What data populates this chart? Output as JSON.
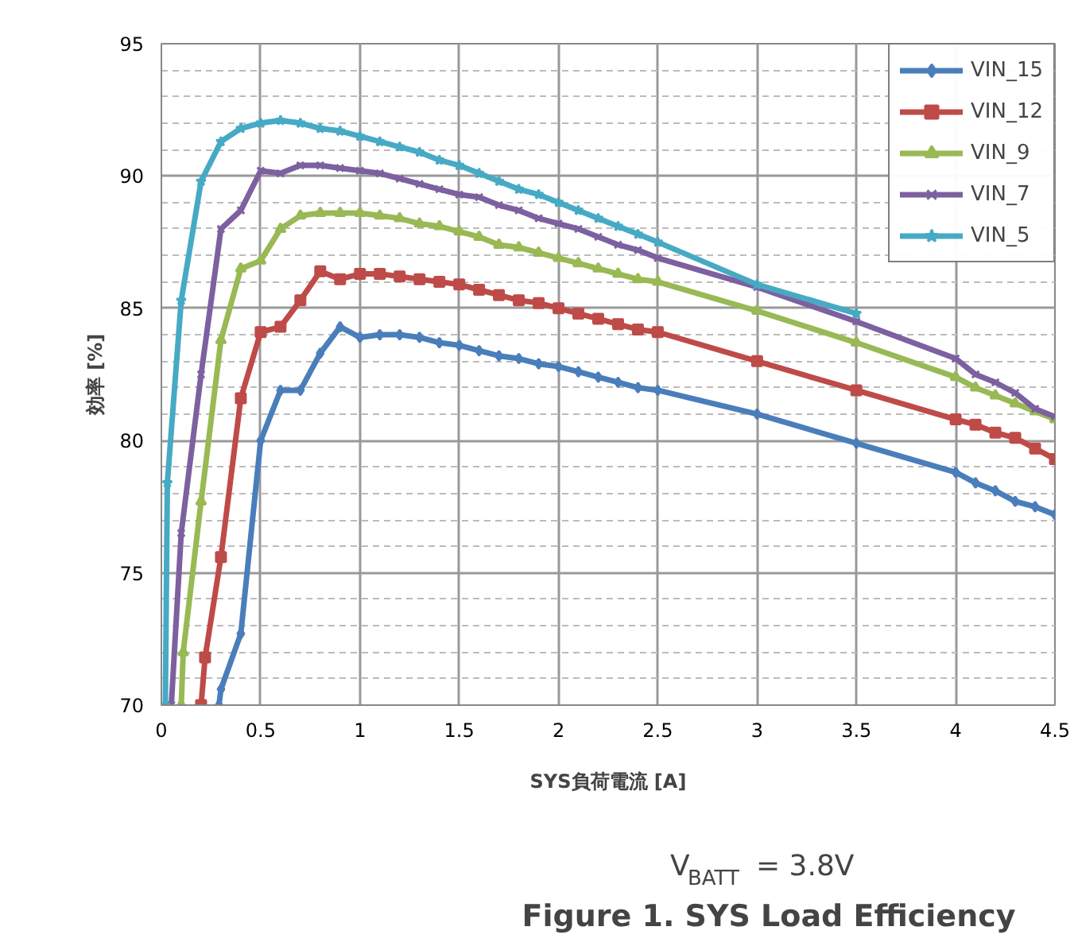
{
  "chart_data": {
    "type": "line",
    "title": "Figure 1. SYS Load Efficiency",
    "subtitle": "V$_{BATT}$ = 3.8V",
    "xlabel": "SYS負荷電流 [A]",
    "ylabel": "効率 [%]",
    "xlim": [
      0,
      4.5
    ],
    "ylim": [
      70,
      95
    ],
    "xticks": [
      0,
      0.5,
      1,
      1.5,
      2,
      2.5,
      3,
      3.5,
      4,
      4.5
    ],
    "yticks": [
      70,
      75,
      80,
      85,
      90,
      95
    ],
    "grid": true,
    "legend": "top right",
    "line_style": "solid",
    "series": [
      {
        "name": "VIN_15",
        "color": "#4a7ebb",
        "marker": "diamond",
        "x": [
          0.29,
          0.3,
          0.4,
          0.5,
          0.6,
          0.7,
          0.8,
          0.9,
          1.0,
          1.1,
          1.2,
          1.3,
          1.4,
          1.5,
          1.6,
          1.7,
          1.8,
          1.9,
          2.0,
          2.1,
          2.2,
          2.3,
          2.4,
          2.5,
          3.0,
          3.5,
          4.0,
          4.1,
          4.2,
          4.3,
          4.4,
          4.5
        ],
        "values": [
          70.0,
          70.6,
          72.7,
          80.0,
          81.9,
          81.9,
          83.3,
          84.3,
          83.9,
          84.0,
          84.0,
          83.9,
          83.7,
          83.6,
          83.4,
          83.2,
          83.1,
          82.9,
          82.8,
          82.6,
          82.4,
          82.2,
          82.0,
          81.9,
          81.0,
          79.9,
          78.8,
          78.4,
          78.1,
          77.7,
          77.5,
          77.2
        ]
      },
      {
        "name": "VIN_12",
        "color": "#be4b48",
        "marker": "square",
        "x": [
          0.2,
          0.22,
          0.3,
          0.4,
          0.5,
          0.6,
          0.7,
          0.8,
          0.9,
          1.0,
          1.1,
          1.2,
          1.3,
          1.4,
          1.5,
          1.6,
          1.7,
          1.8,
          1.9,
          2.0,
          2.1,
          2.2,
          2.3,
          2.4,
          2.5,
          3.0,
          3.5,
          4.0,
          4.1,
          4.2,
          4.3,
          4.4,
          4.5
        ],
        "values": [
          70.0,
          71.8,
          75.6,
          81.6,
          84.1,
          84.3,
          85.3,
          86.4,
          86.1,
          86.3,
          86.3,
          86.2,
          86.1,
          86.0,
          85.9,
          85.7,
          85.5,
          85.3,
          85.2,
          85.0,
          84.8,
          84.6,
          84.4,
          84.2,
          84.1,
          83.0,
          81.9,
          80.8,
          80.6,
          80.3,
          80.1,
          79.7,
          79.3
        ]
      },
      {
        "name": "VIN_9",
        "color": "#98b954",
        "marker": "triangle",
        "x": [
          0.1,
          0.11,
          0.2,
          0.3,
          0.4,
          0.5,
          0.6,
          0.7,
          0.8,
          0.9,
          1.0,
          1.1,
          1.2,
          1.3,
          1.4,
          1.5,
          1.6,
          1.7,
          1.8,
          1.9,
          2.0,
          2.1,
          2.2,
          2.3,
          2.4,
          2.5,
          3.0,
          3.5,
          4.0,
          4.1,
          4.2,
          4.3,
          4.4,
          4.5
        ],
        "values": [
          70.0,
          72.0,
          77.7,
          83.8,
          86.5,
          86.8,
          88.0,
          88.5,
          88.6,
          88.6,
          88.6,
          88.5,
          88.4,
          88.2,
          88.1,
          87.9,
          87.7,
          87.4,
          87.3,
          87.1,
          86.9,
          86.7,
          86.5,
          86.3,
          86.1,
          86.0,
          84.9,
          83.7,
          82.4,
          82.0,
          81.7,
          81.4,
          81.1,
          80.8
        ]
      },
      {
        "name": "VIN_7",
        "color": "#7d60a0",
        "marker": "cross",
        "x": [
          0.05,
          0.1,
          0.2,
          0.3,
          0.4,
          0.5,
          0.6,
          0.7,
          0.8,
          0.9,
          1.0,
          1.1,
          1.2,
          1.3,
          1.4,
          1.5,
          1.6,
          1.7,
          1.8,
          1.9,
          2.0,
          2.1,
          2.2,
          2.3,
          2.4,
          2.5,
          3.0,
          3.5,
          4.0,
          4.1,
          4.2,
          4.3,
          4.4,
          4.5
        ],
        "values": [
          70.0,
          76.5,
          82.5,
          88.0,
          88.7,
          90.2,
          90.1,
          90.4,
          90.4,
          90.3,
          90.2,
          90.1,
          89.9,
          89.7,
          89.5,
          89.3,
          89.2,
          88.9,
          88.7,
          88.4,
          88.2,
          88.0,
          87.7,
          87.4,
          87.2,
          86.9,
          85.8,
          84.5,
          83.1,
          82.5,
          82.2,
          81.8,
          81.2,
          80.9
        ]
      },
      {
        "name": "VIN_5",
        "color": "#46aac5",
        "marker": "star",
        "x": [
          0.02,
          0.03,
          0.1,
          0.2,
          0.3,
          0.4,
          0.5,
          0.6,
          0.7,
          0.8,
          0.9,
          1.0,
          1.1,
          1.2,
          1.3,
          1.4,
          1.5,
          1.6,
          1.7,
          1.8,
          1.9,
          2.0,
          2.1,
          2.2,
          2.3,
          2.4,
          2.5,
          3.0,
          3.5
        ],
        "values": [
          70.0,
          78.4,
          85.3,
          89.8,
          91.3,
          91.8,
          92.0,
          92.1,
          92.0,
          91.8,
          91.7,
          91.5,
          91.3,
          91.1,
          90.9,
          90.6,
          90.4,
          90.1,
          89.8,
          89.5,
          89.3,
          89.0,
          88.7,
          88.4,
          88.1,
          87.8,
          87.5,
          85.9,
          84.8
        ]
      }
    ]
  }
}
